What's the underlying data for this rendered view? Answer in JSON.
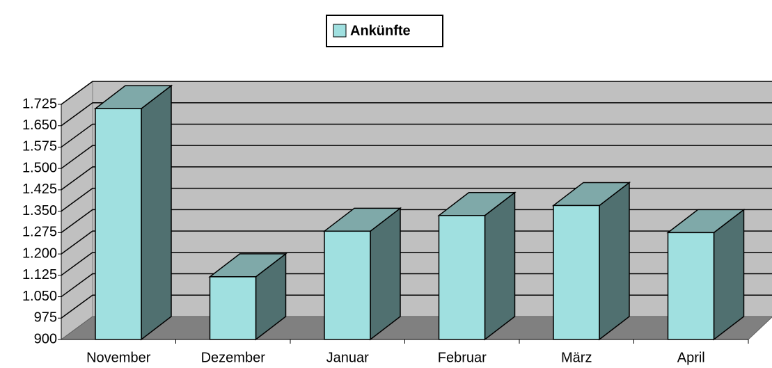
{
  "chart_data": {
    "type": "bar3d",
    "categories": [
      "November",
      "Dezember",
      "Januar",
      "Februar",
      "März",
      "April"
    ],
    "series": [
      {
        "name": "Ankünfte",
        "color": "#a0e0e0",
        "values": [
          1710,
          1120,
          1280,
          1335,
          1370,
          1275
        ]
      }
    ],
    "ylim": [
      900,
      1725
    ],
    "yticks": [
      900,
      975,
      {
        "value": 1050,
        "label": "1.050"
      },
      {
        "value": 1125,
        "label": "1.125"
      },
      {
        "value": 1200,
        "label": "1.200"
      },
      {
        "value": 1275,
        "label": "1.275"
      },
      {
        "value": 1350,
        "label": "1.350"
      },
      {
        "value": 1425,
        "label": "1.425"
      },
      {
        "value": 1500,
        "label": "1.500"
      },
      {
        "value": 1575,
        "label": "1.575"
      },
      {
        "value": 1650,
        "label": "1.650"
      },
      {
        "value": 1725,
        "label": "1.725"
      }
    ],
    "grid": true,
    "legend": "top"
  }
}
